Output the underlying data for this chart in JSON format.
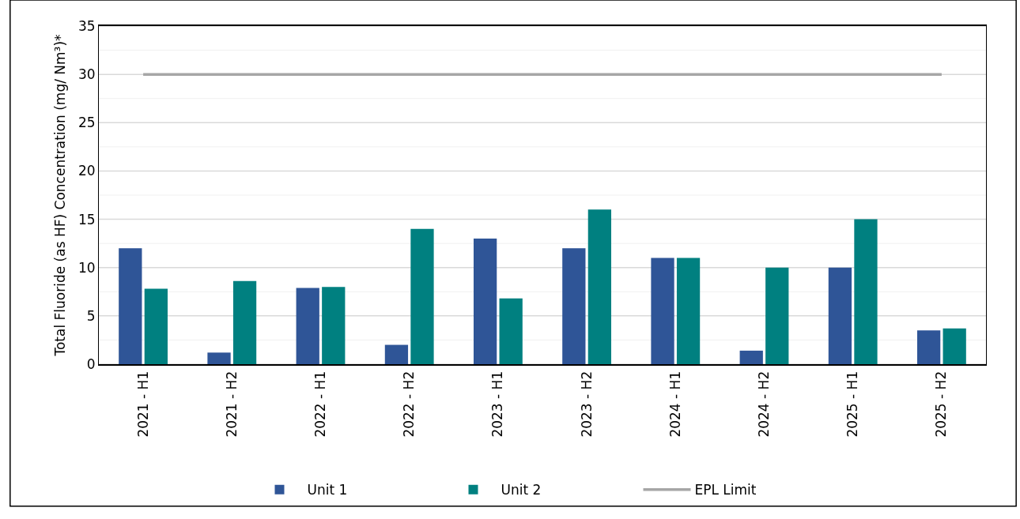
{
  "chart_data": {
    "type": "bar",
    "ylabel": "Total Fluoride (as HF) Concentration (mg/ Nm³)*",
    "categories": [
      "2021 - H1",
      "2021 - H2",
      "2022 - H1",
      "2022 - H2",
      "2023 - H1",
      "2023 - H2",
      "2024 - H1",
      "2024 - H2",
      "2025 - H1",
      "2025 - H2"
    ],
    "series": [
      {
        "name": "Unit 1",
        "color": "#2f5597",
        "values": [
          12,
          1.2,
          7.9,
          2,
          13,
          12,
          11,
          1.4,
          10,
          3.5
        ]
      },
      {
        "name": "Unit 2",
        "color": "#008080",
        "values": [
          7.8,
          8.6,
          8,
          14,
          6.8,
          16,
          11,
          10,
          15,
          3.7
        ]
      },
      {
        "name": "EPL Limit",
        "type": "line",
        "color": "#a6a6a6",
        "values": [
          30,
          30,
          30,
          30,
          30,
          30,
          30,
          30,
          30,
          30
        ]
      }
    ],
    "ylim": [
      0,
      35
    ],
    "yticks": [
      0,
      {
        "value": 2.5,
        "label": null
      },
      5,
      {
        "value": 7.5,
        "label": null
      },
      10,
      {
        "value": 12.5,
        "label": null
      },
      15,
      {
        "value": 17.5,
        "label": null
      },
      20,
      {
        "value": 22.5,
        "label": null
      },
      25,
      {
        "value": 27.5,
        "label": null
      },
      30,
      {
        "value": 32.5,
        "label": null
      },
      35
    ],
    "grid": "y",
    "legend": "bottom",
    "marker": "none"
  }
}
